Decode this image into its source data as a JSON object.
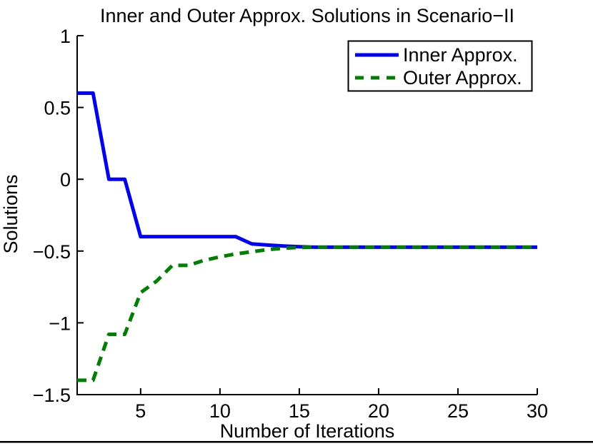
{
  "figure": {
    "title": "Inner and Outer Approx. Solutions in Scenario−II",
    "xlabel": "Number of Iterations",
    "ylabel": "Solutions"
  },
  "legend": {
    "position": "top-right",
    "items": [
      {
        "label": "Inner Approx.",
        "color": "#0000ff",
        "style": "solid"
      },
      {
        "label": "Outer Approx.",
        "color": "#008000",
        "style": "dashed"
      }
    ]
  },
  "chart_data": {
    "type": "line",
    "title": "Inner and Outer Approx. Solutions in Scenario−II",
    "xlabel": "Number of Iterations",
    "ylabel": "Solutions",
    "xlim": [
      1,
      30
    ],
    "ylim": [
      -1.5,
      1
    ],
    "xticks": [
      5,
      10,
      15,
      20,
      25,
      30
    ],
    "xtick_labels": [
      "5",
      "10",
      "15",
      "20",
      "25",
      "30"
    ],
    "yticks": [
      1,
      0.5,
      0,
      -0.5,
      -1,
      -1.5
    ],
    "ytick_labels": [
      "1",
      "0.5",
      "0",
      "−0.5",
      "−1",
      "−1.5"
    ],
    "grid": false,
    "legend_position": "top-right",
    "x": [
      1,
      2,
      3,
      4,
      5,
      6,
      7,
      8,
      9,
      10,
      11,
      12,
      13,
      14,
      15,
      16,
      17,
      18,
      19,
      20,
      21,
      22,
      23,
      24,
      25,
      26,
      27,
      28,
      29,
      30
    ],
    "series": [
      {
        "name": "Inner Approx.",
        "color": "#0000ff",
        "style": "solid",
        "values": [
          0.6,
          0.6,
          0,
          0,
          -0.4,
          -0.4,
          -0.4,
          -0.4,
          -0.4,
          -0.4,
          -0.4,
          -0.45,
          -0.458,
          -0.465,
          -0.47,
          -0.473,
          -0.473,
          -0.473,
          -0.473,
          -0.473,
          -0.473,
          -0.473,
          -0.473,
          -0.473,
          -0.473,
          -0.473,
          -0.473,
          -0.473,
          -0.473,
          -0.473
        ]
      },
      {
        "name": "Outer Approx.",
        "color": "#008000",
        "style": "dashed",
        "values": [
          -1.4,
          -1.4,
          -1.08,
          -1.08,
          -0.79,
          -0.71,
          -0.6,
          -0.6,
          -0.565,
          -0.54,
          -0.52,
          -0.505,
          -0.49,
          -0.48,
          -0.475,
          -0.473,
          -0.473,
          -0.473,
          -0.473,
          -0.473,
          -0.473,
          -0.473,
          -0.473,
          -0.473,
          -0.473,
          -0.473,
          -0.473,
          -0.473,
          -0.473,
          -0.473
        ]
      }
    ],
    "axis_color": "#000000"
  }
}
